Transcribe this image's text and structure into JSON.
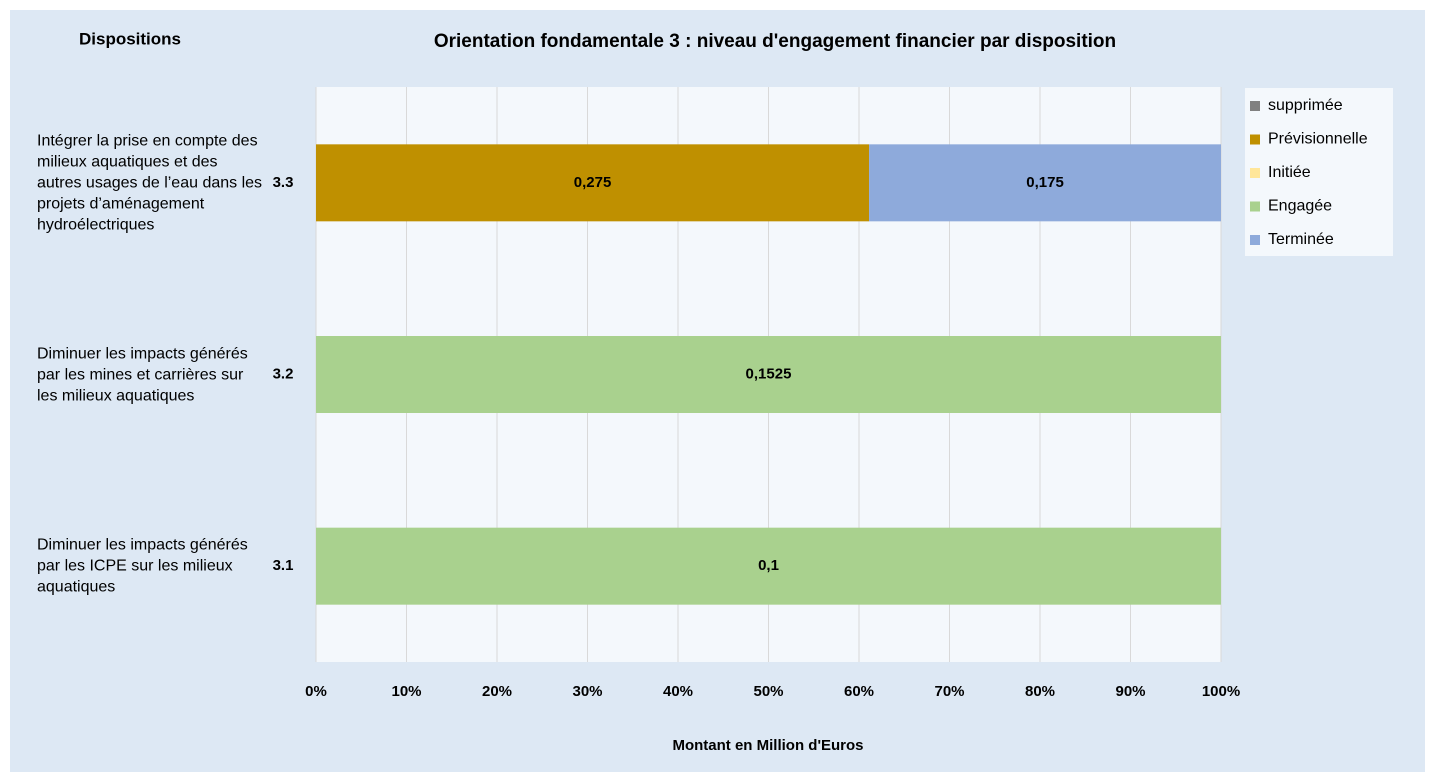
{
  "chart_data": {
    "type": "stacked-bar-100",
    "title": "Orientation fondamentale 3 : niveau d'engagement financier par disposition",
    "category_header": "Dispositions",
    "x_label": "Montant en Million d'Euros",
    "categories": [
      "3.3",
      "3.2",
      "3.1"
    ],
    "category_descriptions": [
      "Intégrer la prise en compte des milieux aquatiques et des autres usages de l’eau dans les projets d’aménagement hydroélectriques",
      "Diminuer les impacts générés par les mines et carrières sur les milieux aquatiques",
      "Diminuer les impacts générés par les ICPE sur les milieux aquatiques"
    ],
    "series": [
      {
        "name": "supprimée",
        "color": "#808080",
        "values": [
          null,
          null,
          null
        ]
      },
      {
        "name": "Prévisionnelle",
        "color": "#bf9000",
        "values": [
          0.275,
          null,
          null
        ],
        "value_labels": [
          "0,275",
          null,
          null
        ]
      },
      {
        "name": "Initiée",
        "color": "#ffe699",
        "values": [
          null,
          null,
          null
        ]
      },
      {
        "name": "Engagée",
        "color": "#a9d18e",
        "values": [
          null,
          0.1525,
          0.1
        ],
        "value_labels": [
          null,
          "0,1525",
          "0,1"
        ]
      },
      {
        "name": "Terminée",
        "color": "#8eaadb",
        "values": [
          0.175,
          null,
          null
        ],
        "value_labels": [
          "0,175",
          null,
          null
        ]
      }
    ],
    "xlim": [
      0,
      100
    ],
    "xticks": [
      {
        "value": 0,
        "label": "0%"
      },
      {
        "value": 10,
        "label": "10%"
      },
      {
        "value": 20,
        "label": "20%"
      },
      {
        "value": 30,
        "label": "30%"
      },
      {
        "value": 40,
        "label": "40%"
      },
      {
        "value": 50,
        "label": "50%"
      },
      {
        "value": 60,
        "label": "60%"
      },
      {
        "value": 70,
        "label": "70%"
      },
      {
        "value": 80,
        "label": "80%"
      },
      {
        "value": 90,
        "label": "90%"
      },
      {
        "value": 100,
        "label": "100%"
      }
    ],
    "grid": true,
    "legend": "right"
  }
}
